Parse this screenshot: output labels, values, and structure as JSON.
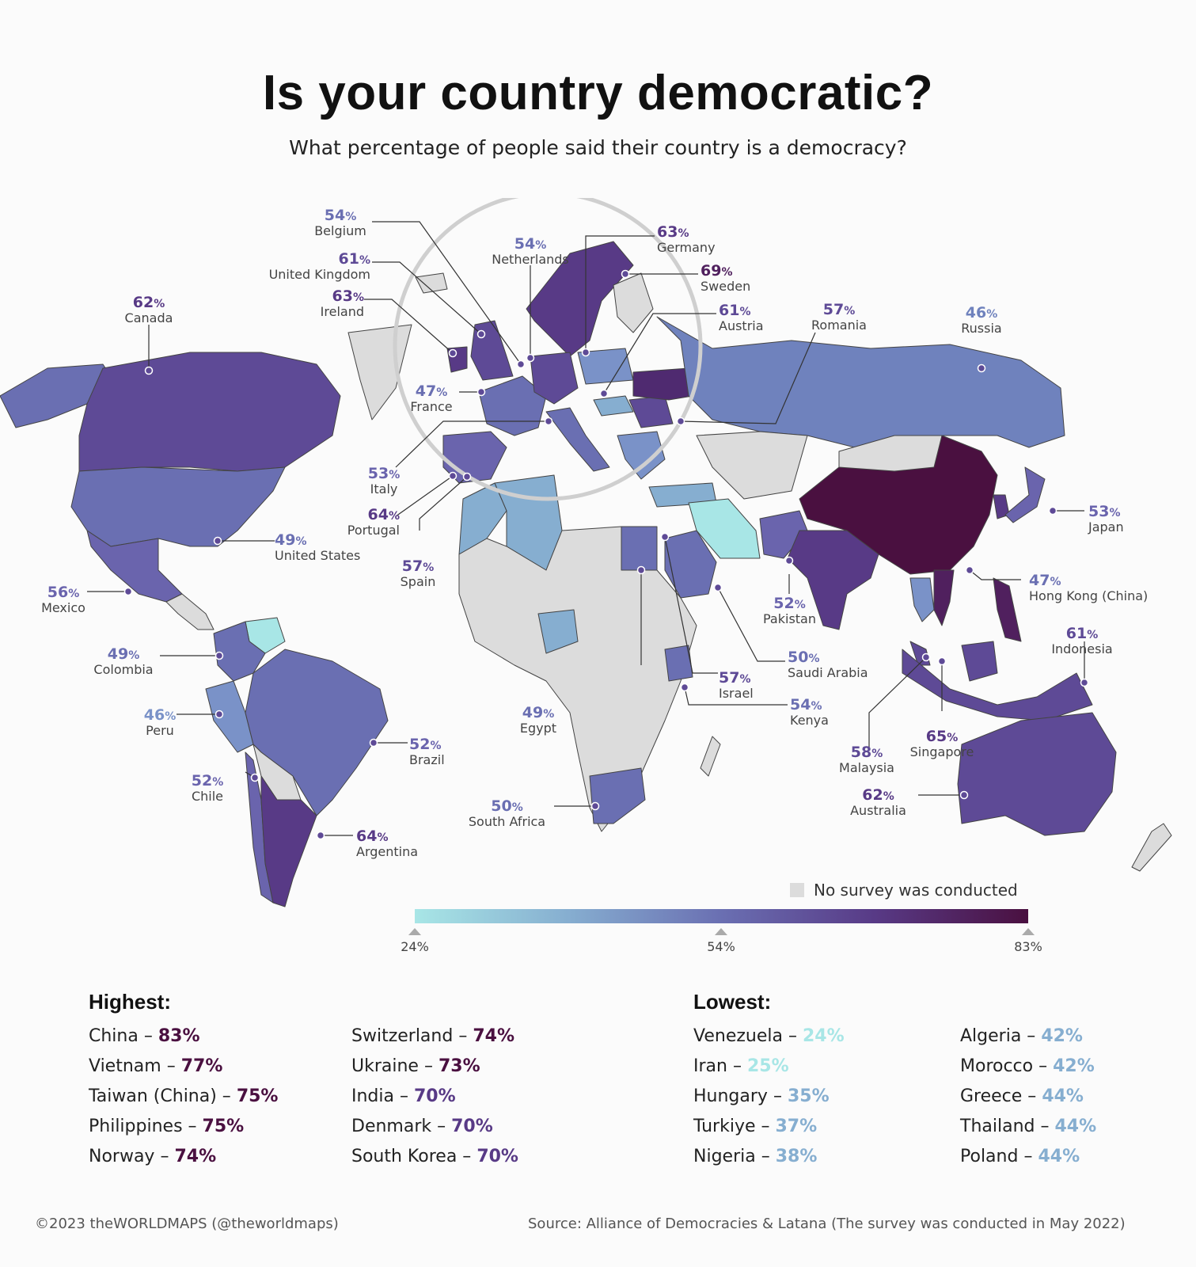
{
  "title": "Is your country democratic?",
  "subtitle": "What percentage of people said their country is a democracy?",
  "map_labels": [
    {
      "id": "belgium",
      "pct": "54",
      "name": "Belgium"
    },
    {
      "id": "netherlands",
      "pct": "54",
      "name": "Netherlands"
    },
    {
      "id": "germany",
      "pct": "63",
      "name": "Germany"
    },
    {
      "id": "sweden",
      "pct": "69",
      "name": "Sweden"
    },
    {
      "id": "uk",
      "pct": "61",
      "name": "United Kingdom"
    },
    {
      "id": "ireland",
      "pct": "63",
      "name": "Ireland"
    },
    {
      "id": "austria",
      "pct": "61",
      "name": "Austria"
    },
    {
      "id": "romania",
      "pct": "57",
      "name": "Romania"
    },
    {
      "id": "russia",
      "pct": "46",
      "name": "Russia"
    },
    {
      "id": "canada",
      "pct": "62",
      "name": "Canada"
    },
    {
      "id": "france",
      "pct": "47",
      "name": "France"
    },
    {
      "id": "italy",
      "pct": "53",
      "name": "Italy"
    },
    {
      "id": "portugal",
      "pct": "64",
      "name": "Portugal"
    },
    {
      "id": "spain",
      "pct": "57",
      "name": "Spain"
    },
    {
      "id": "us",
      "pct": "49",
      "name": "United States"
    },
    {
      "id": "japan",
      "pct": "53",
      "name": "Japan"
    },
    {
      "id": "mexico",
      "pct": "56",
      "name": "Mexico"
    },
    {
      "id": "hongkong",
      "pct": "47",
      "name": "Hong Kong (China)"
    },
    {
      "id": "pakistan",
      "pct": "52",
      "name": "Pakistan"
    },
    {
      "id": "indonesia",
      "pct": "61",
      "name": "Indonesia"
    },
    {
      "id": "colombia",
      "pct": "49",
      "name": "Colombia"
    },
    {
      "id": "saudi",
      "pct": "50",
      "name": "Saudi Arabia"
    },
    {
      "id": "israel",
      "pct": "57",
      "name": "Israel"
    },
    {
      "id": "peru",
      "pct": "46",
      "name": "Peru"
    },
    {
      "id": "egypt",
      "pct": "49",
      "name": "Egypt"
    },
    {
      "id": "kenya",
      "pct": "54",
      "name": "Kenya"
    },
    {
      "id": "singapore",
      "pct": "65",
      "name": "Singapore"
    },
    {
      "id": "malaysia",
      "pct": "58",
      "name": "Malaysia"
    },
    {
      "id": "brazil",
      "pct": "52",
      "name": "Brazil"
    },
    {
      "id": "chile",
      "pct": "52",
      "name": "Chile"
    },
    {
      "id": "australia",
      "pct": "62",
      "name": "Australia"
    },
    {
      "id": "southafrica",
      "pct": "50",
      "name": "South Africa"
    },
    {
      "id": "argentina",
      "pct": "64",
      "name": "Argentina"
    }
  ],
  "percent_sign": "%",
  "legend": {
    "no_survey": "No survey was conducted",
    "min": "24%",
    "mid": "54%",
    "max": "83%",
    "colors": [
      "#a8e6e6",
      "#86aed0",
      "#6a6fb2",
      "#583a86",
      "#4a1040"
    ],
    "no_survey_color": "#dcdcdc"
  },
  "highest": {
    "heading": "Highest:",
    "col1": [
      {
        "country": "China",
        "sep": " – ",
        "value": "83%"
      },
      {
        "country": "Vietnam",
        "sep": " – ",
        "value": "77%"
      },
      {
        "country": "Taiwan (China)",
        "sep": " – ",
        "value": "75%"
      },
      {
        "country": "Philippines",
        "sep": " – ",
        "value": "75%"
      },
      {
        "country": "Norway",
        "sep": " – ",
        "value": "74%"
      }
    ],
    "col2": [
      {
        "country": "Switzerland",
        "sep": " – ",
        "value": "74%"
      },
      {
        "country": "Ukraine",
        "sep": " – ",
        "value": "73%"
      },
      {
        "country": "India",
        "sep": " – ",
        "value": "70%"
      },
      {
        "country": "Denmark",
        "sep": " – ",
        "value": "70%"
      },
      {
        "country": "South Korea",
        "sep": " – ",
        "value": "70%"
      }
    ]
  },
  "lowest": {
    "heading": "Lowest:",
    "col1": [
      {
        "country": "Venezuela",
        "sep": " – ",
        "value": "24%"
      },
      {
        "country": "Iran",
        "sep": " – ",
        "value": "25%"
      },
      {
        "country": "Hungary",
        "sep": " – ",
        "value": "35%"
      },
      {
        "country": "Turkiye",
        "sep": " – ",
        "value": "37%"
      },
      {
        "country": "Nigeria",
        "sep": " – ",
        "value": "38%"
      }
    ],
    "col2": [
      {
        "country": "Algeria",
        "sep": " – ",
        "value": "42%"
      },
      {
        "country": "Morocco",
        "sep": " – ",
        "value": "42%"
      },
      {
        "country": "Greece",
        "sep": " – ",
        "value": "44%"
      },
      {
        "country": "Thailand",
        "sep": " – ",
        "value": "44%"
      },
      {
        "country": "Poland",
        "sep": " – ",
        "value": "44%"
      }
    ]
  },
  "footer": {
    "copyright": "©2023 theWORLDMAPS (@theworldmaps)",
    "source": "Source:  Alliance of Democracies & Latana (The survey was conducted in May 2022)"
  }
}
